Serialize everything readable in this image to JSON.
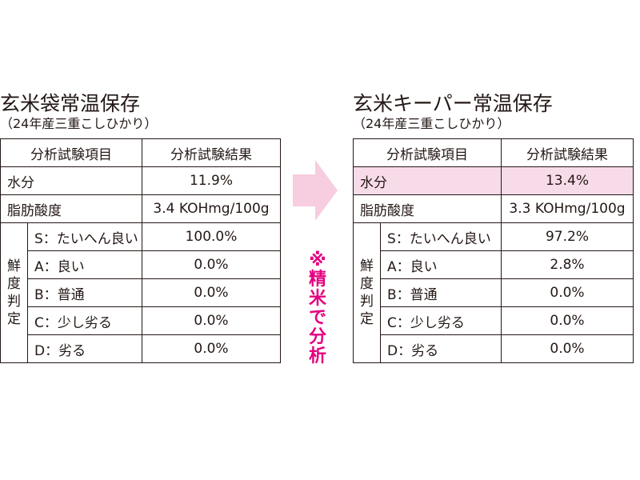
{
  "colors": {
    "highlight": "#f8dbe8",
    "arrow": "#f7cde0",
    "note": "#e4007f",
    "text": "#231815"
  },
  "left": {
    "title": "玄米袋常温保存",
    "subtitle": "（24年産三重こしひかり）",
    "header": {
      "item": "分析試験項目",
      "result": "分析試験結果"
    },
    "moisture": {
      "label": "水分",
      "value": "11.9%"
    },
    "fat_acidity": {
      "label": "脂肪酸度",
      "value": "3.4 KOHmg/100g"
    },
    "freshness_label": [
      "鮮",
      "度",
      "判",
      "定"
    ],
    "grades": [
      {
        "label": "S：たいへん良い",
        "value": "100.0%"
      },
      {
        "label": "A：良い",
        "value": "0.0%"
      },
      {
        "label": "B：普通",
        "value": "0.0%"
      },
      {
        "label": "C：少し劣る",
        "value": "0.0%"
      },
      {
        "label": "D：劣る",
        "value": "0.0%"
      }
    ]
  },
  "right": {
    "title": "玄米キーパー常温保存",
    "subtitle": "（24年産三重こしひかり）",
    "header": {
      "item": "分析試験項目",
      "result": "分析試験結果"
    },
    "moisture": {
      "label": "水分",
      "value": "13.4%"
    },
    "fat_acidity": {
      "label": "脂肪酸度",
      "value": "3.3 KOHmg/100g"
    },
    "freshness_label": [
      "鮮",
      "度",
      "判",
      "定"
    ],
    "grades": [
      {
        "label": "S：たいへん良い",
        "value": "97.2%"
      },
      {
        "label": "A：良い",
        "value": "2.8%"
      },
      {
        "label": "B：普通",
        "value": "0.0%"
      },
      {
        "label": "C：少し劣る",
        "value": "0.0%"
      },
      {
        "label": "D：劣る",
        "value": "0.0%"
      }
    ]
  },
  "note": [
    "※",
    "精",
    "米",
    "で",
    "分",
    "析"
  ],
  "arrow_icon": "right-arrow-icon"
}
